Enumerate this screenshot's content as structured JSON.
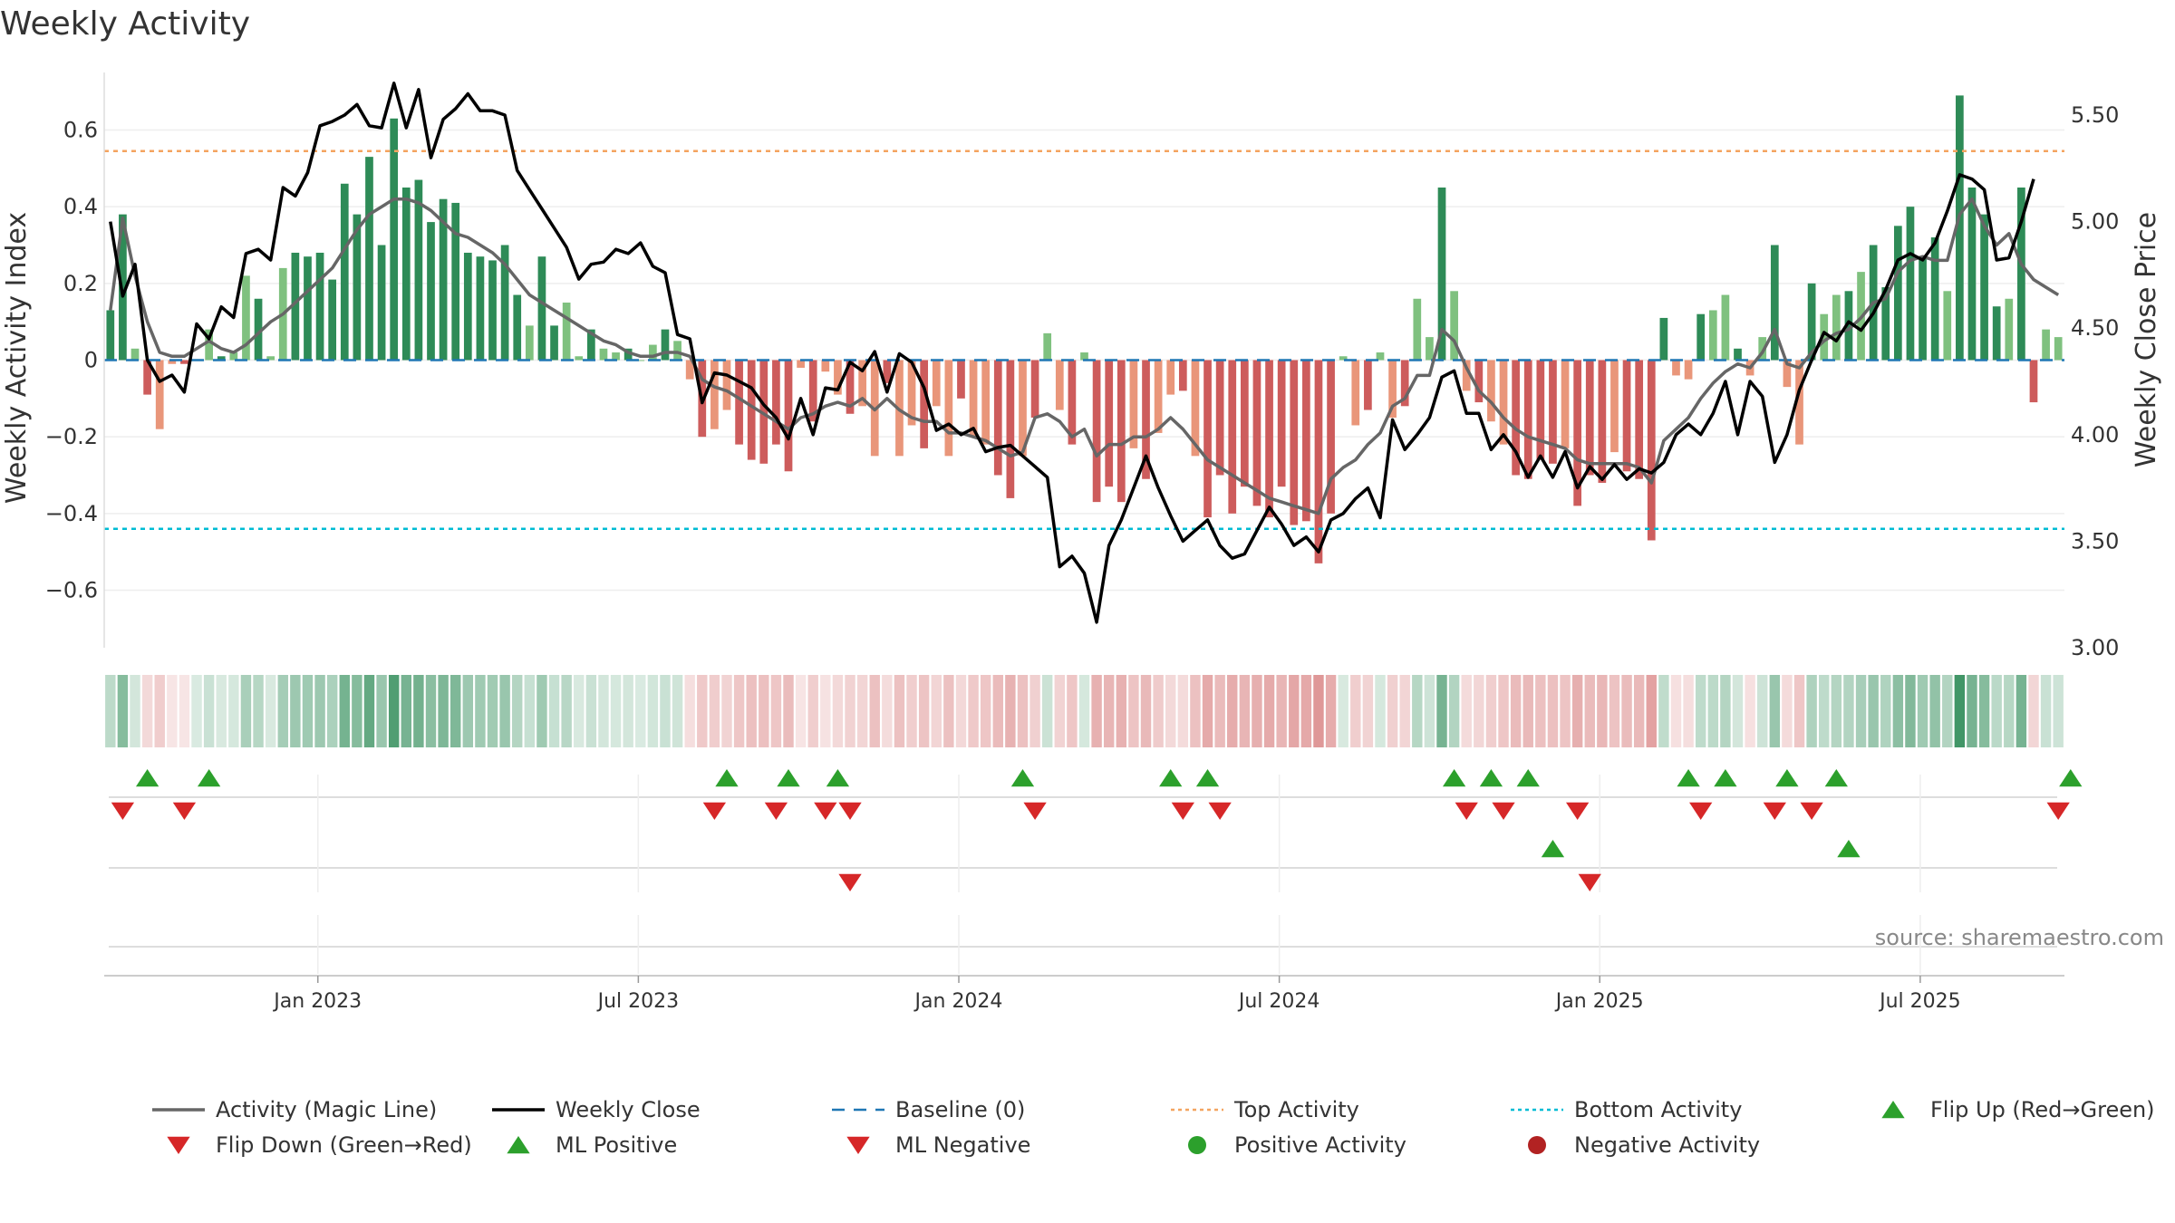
{
  "chart_data": {
    "type": "bar",
    "title": "Weekly Activity",
    "ylabel": "Weekly Activity Index",
    "y2label": "Weekly Close Price",
    "ylim": [
      -0.75,
      0.75
    ],
    "y2lim": [
      3.0,
      5.7
    ],
    "yticks": [
      0.6,
      0.4,
      0.2,
      0,
      -0.2,
      -0.4,
      -0.6
    ],
    "ytick_labels": [
      "0.6",
      "0.4",
      "0.2",
      "0",
      "−0.2",
      "−0.4",
      "−0.6"
    ],
    "y2ticks": [
      5.5,
      5.0,
      4.5,
      4.0,
      3.5,
      3.0
    ],
    "y2tick_labels": [
      "5.50",
      "5.00",
      "4.50",
      "4.00",
      "3.50",
      "3.00"
    ],
    "x_months_range": [
      -4.0,
      32.7
    ],
    "xticks": [
      {
        "month": 0,
        "label": "Jan 2023"
      },
      {
        "month": 6,
        "label": "Jul 2023"
      },
      {
        "month": 12,
        "label": "Jan 2024"
      },
      {
        "month": 18,
        "label": "Jul 2024"
      },
      {
        "month": 24,
        "label": "Jan 2025"
      },
      {
        "month": 30,
        "label": "Jul 2025"
      }
    ],
    "top_activity": 0.545,
    "bottom_activity": -0.44,
    "activity_values": [
      0.13,
      0.38,
      0.03,
      -0.09,
      -0.18,
      -0.01,
      -0.01,
      0.0,
      0.08,
      0.01,
      0.02,
      0.22,
      0.16,
      0.01,
      0.24,
      0.28,
      0.27,
      0.28,
      0.21,
      0.46,
      0.38,
      0.53,
      0.3,
      0.63,
      0.45,
      0.47,
      0.36,
      0.42,
      0.41,
      0.28,
      0.27,
      0.26,
      0.3,
      0.17,
      0.09,
      0.27,
      0.09,
      0.15,
      0.01,
      0.08,
      0.03,
      0.02,
      0.03,
      0.0,
      0.04,
      0.08,
      0.05,
      -0.05,
      -0.2,
      -0.18,
      -0.13,
      -0.22,
      -0.26,
      -0.27,
      -0.22,
      -0.29,
      -0.02,
      -0.16,
      -0.03,
      -0.09,
      -0.14,
      -0.12,
      -0.25,
      -0.06,
      -0.25,
      -0.17,
      -0.23,
      -0.12,
      -0.25,
      -0.1,
      -0.2,
      -0.22,
      -0.3,
      -0.36,
      -0.25,
      -0.15,
      0.07,
      -0.13,
      -0.22,
      0.02,
      -0.37,
      -0.33,
      -0.37,
      -0.23,
      -0.31,
      -0.19,
      -0.09,
      -0.08,
      -0.25,
      -0.41,
      -0.3,
      -0.4,
      -0.33,
      -0.38,
      -0.41,
      -0.33,
      -0.43,
      -0.42,
      -0.53,
      -0.4,
      0.01,
      -0.17,
      -0.13,
      0.02,
      -0.15,
      -0.12,
      0.16,
      0.06,
      0.45,
      0.18,
      -0.08,
      -0.11,
      -0.16,
      -0.22,
      -0.3,
      -0.31,
      -0.26,
      -0.27,
      -0.23,
      -0.38,
      -0.3,
      -0.32,
      -0.24,
      -0.29,
      -0.31,
      -0.47,
      0.11,
      -0.04,
      -0.05,
      0.12,
      0.13,
      0.17,
      0.03,
      -0.04,
      0.06,
      0.3,
      -0.07,
      -0.22,
      0.2,
      0.12,
      0.17,
      0.18,
      0.23,
      0.3,
      0.19,
      0.35,
      0.4,
      0.27,
      0.32,
      0.18,
      0.69,
      0.45,
      0.38,
      0.14,
      0.16,
      0.45,
      -0.11,
      0.08,
      0.06
    ],
    "magic_line": [
      0.13,
      0.37,
      0.22,
      0.1,
      0.02,
      0.01,
      0.01,
      0.03,
      0.05,
      0.03,
      0.02,
      0.04,
      0.07,
      0.1,
      0.12,
      0.15,
      0.18,
      0.21,
      0.24,
      0.29,
      0.34,
      0.38,
      0.4,
      0.42,
      0.42,
      0.41,
      0.39,
      0.36,
      0.33,
      0.32,
      0.3,
      0.28,
      0.25,
      0.21,
      0.17,
      0.15,
      0.13,
      0.11,
      0.09,
      0.07,
      0.05,
      0.04,
      0.02,
      0.01,
      0.01,
      0.02,
      0.02,
      0.01,
      -0.05,
      -0.07,
      -0.08,
      -0.1,
      -0.12,
      -0.14,
      -0.16,
      -0.18,
      -0.15,
      -0.14,
      -0.12,
      -0.11,
      -0.12,
      -0.1,
      -0.13,
      -0.1,
      -0.13,
      -0.15,
      -0.16,
      -0.16,
      -0.19,
      -0.19,
      -0.2,
      -0.21,
      -0.23,
      -0.25,
      -0.24,
      -0.15,
      -0.14,
      -0.16,
      -0.2,
      -0.18,
      -0.25,
      -0.22,
      -0.22,
      -0.2,
      -0.2,
      -0.18,
      -0.15,
      -0.18,
      -0.22,
      -0.26,
      -0.28,
      -0.3,
      -0.32,
      -0.34,
      -0.36,
      -0.37,
      -0.38,
      -0.39,
      -0.4,
      -0.31,
      -0.28,
      -0.26,
      -0.22,
      -0.19,
      -0.12,
      -0.1,
      -0.04,
      -0.04,
      0.08,
      0.05,
      -0.02,
      -0.08,
      -0.11,
      -0.15,
      -0.18,
      -0.2,
      -0.21,
      -0.22,
      -0.23,
      -0.26,
      -0.27,
      -0.27,
      -0.27,
      -0.27,
      -0.28,
      -0.32,
      -0.21,
      -0.18,
      -0.15,
      -0.1,
      -0.06,
      -0.03,
      -0.01,
      -0.02,
      0.02,
      0.08,
      -0.01,
      -0.02,
      0.02,
      0.05,
      0.07,
      0.08,
      0.11,
      0.15,
      0.16,
      0.23,
      0.26,
      0.27,
      0.26,
      0.26,
      0.38,
      0.42,
      0.35,
      0.3,
      0.33,
      0.25,
      0.21,
      0.19,
      0.17
    ],
    "weekly_close": [
      5.0,
      4.65,
      4.8,
      4.35,
      4.25,
      4.28,
      4.2,
      4.52,
      4.45,
      4.6,
      4.55,
      4.85,
      4.87,
      4.82,
      5.16,
      5.12,
      5.23,
      5.45,
      5.47,
      5.5,
      5.55,
      5.45,
      5.44,
      5.65,
      5.44,
      5.62,
      5.3,
      5.48,
      5.53,
      5.6,
      5.52,
      5.52,
      5.5,
      5.24,
      5.15,
      5.06,
      4.97,
      4.88,
      4.73,
      4.8,
      4.81,
      4.87,
      4.85,
      4.9,
      4.79,
      4.76,
      4.47,
      4.45,
      4.15,
      4.29,
      4.28,
      4.25,
      4.22,
      4.14,
      4.08,
      3.98,
      4.17,
      4.0,
      4.22,
      4.21,
      4.34,
      4.3,
      4.39,
      4.2,
      4.38,
      4.34,
      4.22,
      4.02,
      4.05,
      4.0,
      4.03,
      3.92,
      3.94,
      3.95,
      3.9,
      3.85,
      3.8,
      3.38,
      3.43,
      3.35,
      3.12,
      3.48,
      3.6,
      3.75,
      3.9,
      3.75,
      3.62,
      3.5,
      3.55,
      3.6,
      3.48,
      3.42,
      3.44,
      3.55,
      3.66,
      3.58,
      3.48,
      3.52,
      3.45,
      3.6,
      3.63,
      3.7,
      3.75,
      3.61,
      4.07,
      3.93,
      4.0,
      4.08,
      4.27,
      4.3,
      4.1,
      4.1,
      3.93,
      4.0,
      3.92,
      3.8,
      3.9,
      3.8,
      3.92,
      3.75,
      3.85,
      3.79,
      3.86,
      3.79,
      3.84,
      3.82,
      3.87,
      4.0,
      4.05,
      4.0,
      4.1,
      4.25,
      4.0,
      4.25,
      4.18,
      3.87,
      4.0,
      4.21,
      4.35,
      4.48,
      4.44,
      4.53,
      4.49,
      4.57,
      4.68,
      4.82,
      4.85,
      4.82,
      4.9,
      5.05,
      5.22,
      5.2,
      5.15,
      4.82,
      4.83,
      5.0,
      5.2
    ],
    "flip_up_weeks": [
      3,
      8,
      50,
      55,
      59,
      74,
      86,
      89,
      109,
      112,
      115,
      128,
      131,
      136,
      140,
      159
    ],
    "flip_down_weeks": [
      1,
      6,
      49,
      54,
      58,
      60,
      75,
      87,
      90,
      110,
      113,
      119,
      129,
      135,
      138,
      158
    ],
    "ml_positive_weeks": [
      117,
      141
    ],
    "ml_negative_weeks": [
      60,
      120
    ],
    "source": "source: sharemaestro.com",
    "legend": [
      {
        "label": "Activity (Magic Line)",
        "kind": "line",
        "color": "#666666"
      },
      {
        "label": "Weekly Close",
        "kind": "line",
        "color": "#000000"
      },
      {
        "label": "Baseline (0)",
        "kind": "dashed",
        "color": "#1f77b4"
      },
      {
        "label": "Top Activity",
        "kind": "dotted",
        "color": "#f4a460"
      },
      {
        "label": "Bottom Activity",
        "kind": "dotted",
        "color": "#00bcd4"
      },
      {
        "label": "Flip Up (Red→Green)",
        "kind": "triangle-up",
        "color": "#2ca02c"
      },
      {
        "label": "Flip Down (Green→Red)",
        "kind": "triangle-down",
        "color": "#d62728"
      },
      {
        "label": "ML Positive",
        "kind": "triangle-up",
        "color": "#2ca02c"
      },
      {
        "label": "ML Negative",
        "kind": "triangle-down",
        "color": "#d62728"
      },
      {
        "label": "Positive Activity",
        "kind": "circle",
        "color": "#2ca02c"
      },
      {
        "label": "Negative Activity",
        "kind": "circle",
        "color": "#b22222"
      }
    ]
  }
}
